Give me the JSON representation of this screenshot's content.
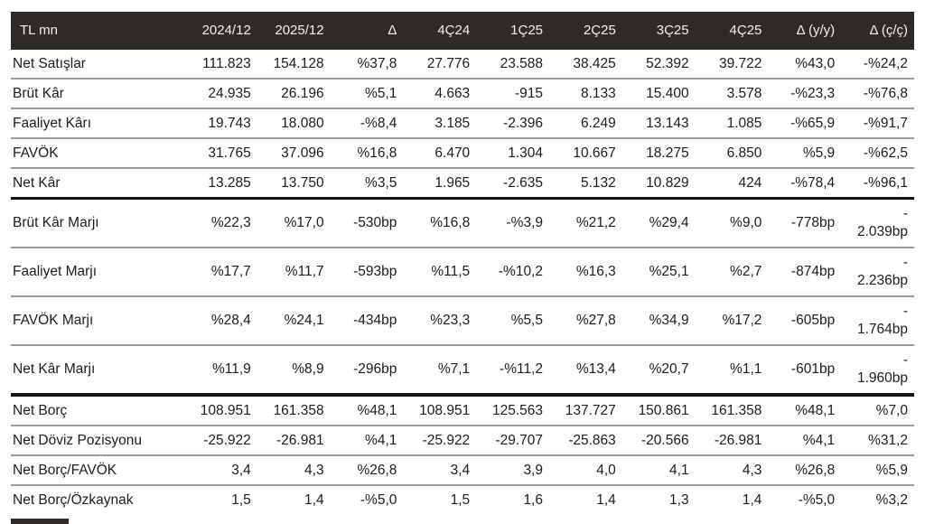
{
  "colors": {
    "header_bg": "#2e2a26",
    "header_text": "#f2f2f0",
    "divider": "#9c9c9c",
    "thick": "#141414"
  },
  "header": {
    "columns": [
      "TL mn",
      "2024/12",
      "2025/12",
      "Δ",
      "4Ç24",
      "1Ç25",
      "2Ç25",
      "3Ç25",
      "4Ç25",
      "Δ (y/y)",
      "Δ (ç/ç)"
    ]
  },
  "sections": [
    {
      "name": "income-statement",
      "row_class": "",
      "rows": [
        {
          "label": "Net Satışlar",
          "divider": "thin",
          "values": [
            "111.823",
            "154.128",
            "%37,8",
            "27.776",
            "23.588",
            "38.425",
            "52.392",
            "39.722",
            "%43,0",
            "-%24,2"
          ]
        },
        {
          "label": "Brüt Kâr",
          "divider": "thin",
          "values": [
            "24.935",
            "26.196",
            "%5,1",
            "4.663",
            "-915",
            "8.133",
            "15.400",
            "3.578",
            "-%23,3",
            "-%76,8"
          ]
        },
        {
          "label": "Faaliyet Kârı",
          "divider": "thin",
          "values": [
            "19.743",
            "18.080",
            "-%8,4",
            "3.185",
            "-2.396",
            "6.249",
            "13.143",
            "1.085",
            "-%65,9",
            "-%91,7"
          ]
        },
        {
          "label": "FAVÖK",
          "divider": "thin",
          "values": [
            "31.765",
            "37.096",
            "%16,8",
            "6.470",
            "1.304",
            "10.667",
            "18.275",
            "6.850",
            "%5,9",
            "-%62,5"
          ]
        },
        {
          "label": "Net Kâr",
          "divider": "thick",
          "values": [
            "13.285",
            "13.750",
            "%3,5",
            "1.965",
            "-2.635",
            "5.132",
            "10.829",
            "424",
            "-%78,4",
            "-%96,1"
          ]
        }
      ]
    },
    {
      "name": "margins",
      "row_class": "margin-row",
      "rows": [
        {
          "label": "Brüt Kâr Marjı",
          "divider": "thin",
          "values": [
            "%22,3",
            "%17,0",
            "-530bp",
            "%16,8",
            "-%3,9",
            "%21,2",
            "%29,4",
            "%9,0",
            "-778bp",
            "-\n2.039bp"
          ]
        },
        {
          "label": "Faaliyet Marjı",
          "divider": "thin",
          "values": [
            "%17,7",
            "%11,7",
            "-593bp",
            "%11,5",
            "-%10,2",
            "%16,3",
            "%25,1",
            "%2,7",
            "-874bp",
            "-\n2.236bp"
          ]
        },
        {
          "label": "FAVÖK Marjı",
          "divider": "thin",
          "values": [
            "%28,4",
            "%24,1",
            "-434bp",
            "%23,3",
            "%5,5",
            "%27,8",
            "%34,9",
            "%17,2",
            "-605bp",
            "-\n1.764bp"
          ]
        },
        {
          "label": "Net Kâr Marjı",
          "divider": "thick2",
          "values": [
            "%11,9",
            "%8,9",
            "-296bp",
            "%7,1",
            "-%11,2",
            "%13,4",
            "%20,7",
            "%1,1",
            "-601bp",
            "-\n1.960bp"
          ]
        }
      ]
    },
    {
      "name": "balance-sheet",
      "row_class": "",
      "rows": [
        {
          "label": "Net Borç",
          "divider": "thin",
          "values": [
            "108.951",
            "161.358",
            "%48,1",
            "108.951",
            "125.563",
            "137.727",
            "150.861",
            "161.358",
            "%48,1",
            "%7,0"
          ]
        },
        {
          "label": "Net Döviz Pozisyonu",
          "divider": "thin",
          "values": [
            "-25.922",
            "-26.981",
            "%4,1",
            "-25.922",
            "-29.707",
            "-25.863",
            "-20.566",
            "-26.981",
            "%4,1",
            "%31,2"
          ]
        },
        {
          "label": "Net Borç/FAVÖK",
          "divider": "thin",
          "values": [
            "3,4",
            "4,3",
            "%26,8",
            "3,4",
            "3,9",
            "4,0",
            "4,1",
            "4,3",
            "%26,8",
            "%5,9"
          ]
        },
        {
          "label": "Net Borç/Özkaynak",
          "divider": "none",
          "values": [
            "1,5",
            "1,4",
            "-%5,0",
            "1,5",
            "1,6",
            "1,4",
            "1,3",
            "1,4",
            "-%5,0",
            "%3,2"
          ]
        }
      ]
    }
  ],
  "chart_data": {
    "type": "table",
    "title": "TL mn",
    "columns": [
      "TL mn",
      "2024/12",
      "2025/12",
      "Δ",
      "4Ç24",
      "1Ç25",
      "2Ç25",
      "3Ç25",
      "4Ç25",
      "Δ (y/y)",
      "Δ (ç/ç)"
    ],
    "rows": [
      [
        "Net Satışlar",
        "111.823",
        "154.128",
        "%37,8",
        "27.776",
        "23.588",
        "38.425",
        "52.392",
        "39.722",
        "%43,0",
        "-%24,2"
      ],
      [
        "Brüt Kâr",
        "24.935",
        "26.196",
        "%5,1",
        "4.663",
        "-915",
        "8.133",
        "15.400",
        "3.578",
        "-%23,3",
        "-%76,8"
      ],
      [
        "Faaliyet Kârı",
        "19.743",
        "18.080",
        "-%8,4",
        "3.185",
        "-2.396",
        "6.249",
        "13.143",
        "1.085",
        "-%65,9",
        "-%91,7"
      ],
      [
        "FAVÖK",
        "31.765",
        "37.096",
        "%16,8",
        "6.470",
        "1.304",
        "10.667",
        "18.275",
        "6.850",
        "%5,9",
        "-%62,5"
      ],
      [
        "Net Kâr",
        "13.285",
        "13.750",
        "%3,5",
        "1.965",
        "-2.635",
        "5.132",
        "10.829",
        "424",
        "-%78,4",
        "-%96,1"
      ],
      [
        "Brüt Kâr Marjı",
        "%22,3",
        "%17,0",
        "-530bp",
        "%16,8",
        "-%3,9",
        "%21,2",
        "%29,4",
        "%9,0",
        "-778bp",
        "-2.039bp"
      ],
      [
        "Faaliyet Marjı",
        "%17,7",
        "%11,7",
        "-593bp",
        "%11,5",
        "-%10,2",
        "%16,3",
        "%25,1",
        "%2,7",
        "-874bp",
        "-2.236bp"
      ],
      [
        "FAVÖK Marjı",
        "%28,4",
        "%24,1",
        "-434bp",
        "%23,3",
        "%5,5",
        "%27,8",
        "%34,9",
        "%17,2",
        "-605bp",
        "-1.764bp"
      ],
      [
        "Net Kâr Marjı",
        "%11,9",
        "%8,9",
        "-296bp",
        "%7,1",
        "-%11,2",
        "%13,4",
        "%20,7",
        "%1,1",
        "-601bp",
        "-1.960bp"
      ],
      [
        "Net Borç",
        "108.951",
        "161.358",
        "%48,1",
        "108.951",
        "125.563",
        "137.727",
        "150.861",
        "161.358",
        "%48,1",
        "%7,0"
      ],
      [
        "Net Döviz Pozisyonu",
        "-25.922",
        "-26.981",
        "%4,1",
        "-25.922",
        "-29.707",
        "-25.863",
        "-20.566",
        "-26.981",
        "%4,1",
        "%31,2"
      ],
      [
        "Net Borç/FAVÖK",
        "3,4",
        "4,3",
        "%26,8",
        "3,4",
        "3,9",
        "4,0",
        "4,1",
        "4,3",
        "%26,8",
        "%5,9"
      ],
      [
        "Net Borç/Özkaynak",
        "1,5",
        "1,4",
        "-%5,0",
        "1,5",
        "1,6",
        "1,4",
        "1,3",
        "1,4",
        "-%5,0",
        "%3,2"
      ]
    ]
  }
}
